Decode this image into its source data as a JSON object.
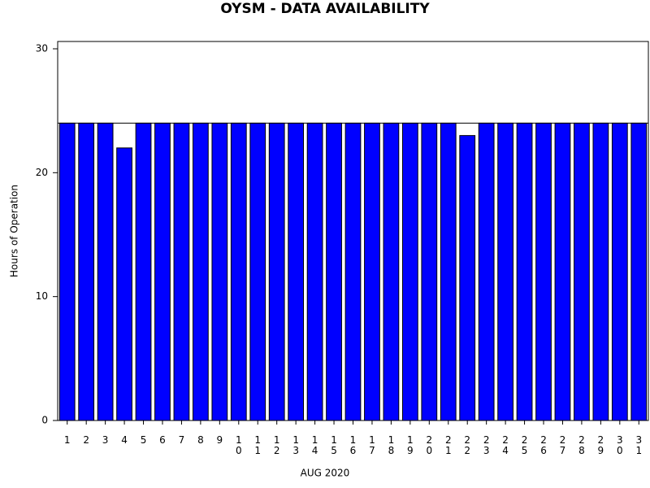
{
  "chart_data": {
    "type": "bar",
    "title": "OYSM - DATA AVAILABILITY",
    "x_label": "AUG 2020",
    "y_label": "Hours of Operation",
    "categories": [
      "1",
      "2",
      "3",
      "4",
      "5",
      "6",
      "7",
      "8",
      "9",
      "10",
      "11",
      "12",
      "13",
      "14",
      "15",
      "16",
      "17",
      "18",
      "19",
      "20",
      "21",
      "22",
      "23",
      "24",
      "25",
      "26",
      "27",
      "28",
      "29",
      "30",
      "31"
    ],
    "values": [
      24,
      24,
      24,
      22,
      24,
      24,
      24,
      24,
      24,
      24,
      24,
      24,
      24,
      24,
      24,
      24,
      24,
      24,
      24,
      24,
      24,
      23,
      24,
      24,
      24,
      24,
      24,
      24,
      24,
      24,
      24
    ],
    "color": "#0000ff",
    "reference_line": 24,
    "ylim": [
      0,
      30
    ],
    "yticks": [
      0,
      10,
      20,
      30
    ],
    "grid": false
  }
}
